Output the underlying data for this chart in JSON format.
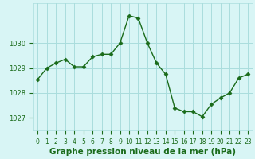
{
  "x": [
    0,
    1,
    2,
    3,
    4,
    5,
    6,
    7,
    8,
    9,
    10,
    11,
    12,
    13,
    14,
    15,
    16,
    17,
    18,
    19,
    20,
    21,
    22,
    23
  ],
  "y": [
    1028.55,
    1029.0,
    1029.2,
    1029.35,
    1029.05,
    1029.05,
    1029.45,
    1029.55,
    1029.55,
    1030.0,
    1031.1,
    1031.0,
    1030.0,
    1029.2,
    1028.75,
    1027.4,
    1027.25,
    1027.25,
    1027.05,
    1027.55,
    1027.8,
    1028.0,
    1028.6,
    1028.75
  ],
  "line_color": "#1a6b1a",
  "marker": "D",
  "marker_size": 2.5,
  "bg_color": "#d8f5f5",
  "grid_color": "#aadddd",
  "xlabel": "Graphe pression niveau de la mer (hPa)",
  "xlabel_fontsize": 7.5,
  "ylabel_ticks": [
    1027,
    1028,
    1029,
    1030
  ],
  "ylim": [
    1026.5,
    1031.6
  ],
  "xlim": [
    -0.5,
    23.5
  ],
  "xtick_labels": [
    "0",
    "1",
    "2",
    "3",
    "4",
    "5",
    "6",
    "7",
    "8",
    "9",
    "10",
    "11",
    "12",
    "13",
    "14",
    "15",
    "16",
    "17",
    "18",
    "19",
    "20",
    "21",
    "22",
    "23"
  ],
  "tick_fontsize": 6,
  "label_color": "#1a6b1a"
}
